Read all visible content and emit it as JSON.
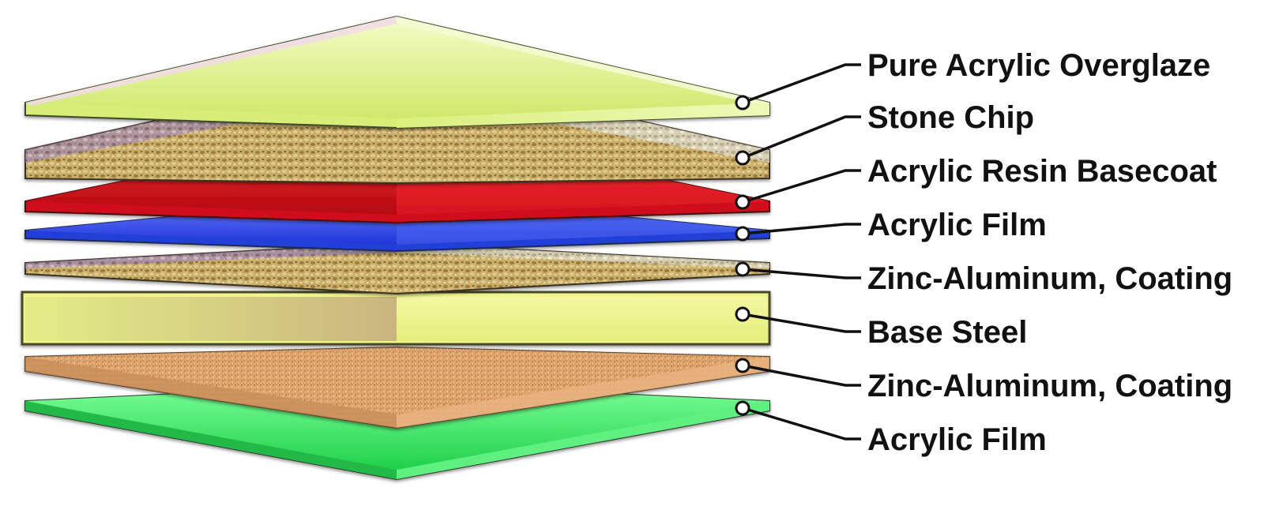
{
  "layers": [
    {
      "id": "pure-acrylic-overglaze",
      "label": "Pure Acrylic Overglaze",
      "color": "#e4f59a",
      "texture": "smooth"
    },
    {
      "id": "stone-chip",
      "label": "Stone Chip",
      "color": "#c3ad72",
      "texture": "granular"
    },
    {
      "id": "acrylic-resin-basecoat",
      "label": "Acrylic Resin Basecoat",
      "color": "#e81420",
      "texture": "smooth"
    },
    {
      "id": "acrylic-film-top",
      "label": "Acrylic Film",
      "color": "#2f4fe6",
      "texture": "smooth"
    },
    {
      "id": "zinc-aluminum-coating-top",
      "label": "Zinc-Aluminum, Coating",
      "color": "#b9a46a",
      "texture": "granular"
    },
    {
      "id": "base-steel",
      "label": "Base Steel",
      "color": "#eef58a",
      "texture": "smooth"
    },
    {
      "id": "zinc-aluminum-coating-bottom",
      "label": "Zinc-Aluminum, Coating",
      "color": "#dea66e",
      "texture": "speckled"
    },
    {
      "id": "acrylic-film-bottom",
      "label": "Acrylic Film",
      "color": "#38e863",
      "texture": "smooth"
    }
  ]
}
